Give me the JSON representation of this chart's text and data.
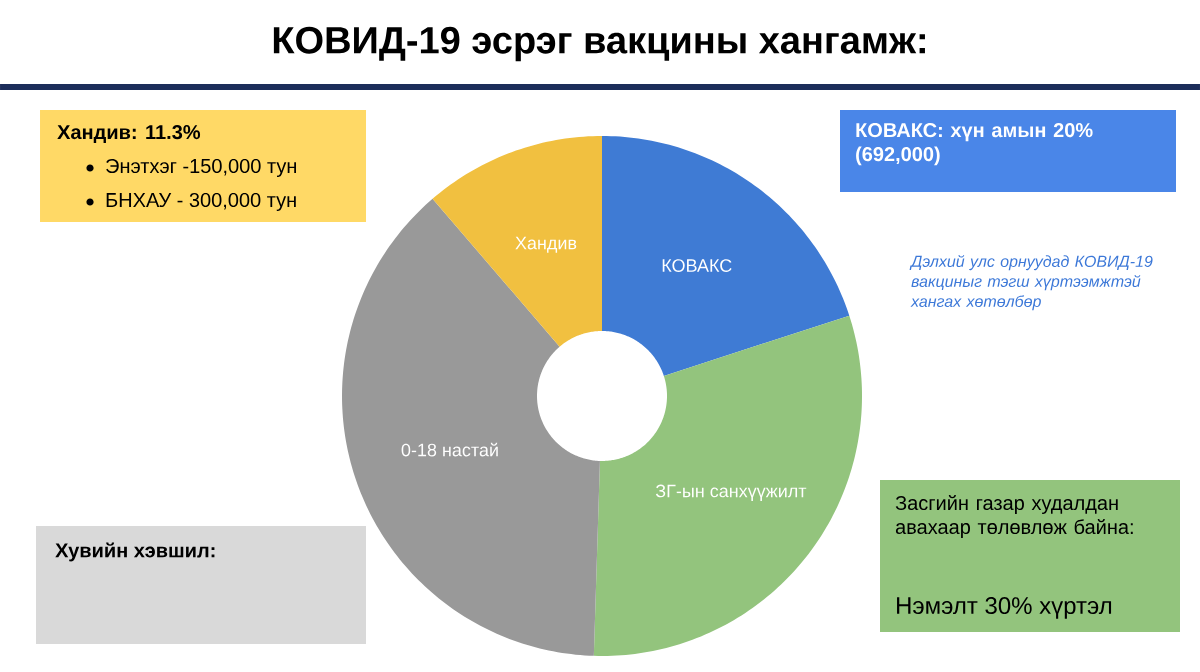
{
  "chart_data": {
    "type": "donut",
    "title": "КОВИД-19 эсрэг вакцины хангамж:",
    "categories": [
      "КОВАКС",
      "ЗГ-ын санхүүжилт",
      "0-18 настай",
      "Хандив"
    ],
    "values": [
      20,
      30.5,
      38.2,
      11.3
    ],
    "colors": [
      "#3f7bd4",
      "#93c47d",
      "#999999",
      "#f1c040"
    ],
    "annotations": [
      "Хандив: 11.3%",
      "Энэтхэг -150,000 тун",
      "БНХАУ - 300,000 тун",
      "КОВАКС: хүн амын 20% (692,000)",
      "Дэлхий улс орнуудад КОВИД-19 вакциныг тэгш хүртээмжтэй хангах хөтөлбөр",
      "Хувийн хэвшил:",
      "Засгийн газар худалдан авахаар төлөвлөж байна:",
      "Нэмэлт 30% хүртэл"
    ]
  }
}
